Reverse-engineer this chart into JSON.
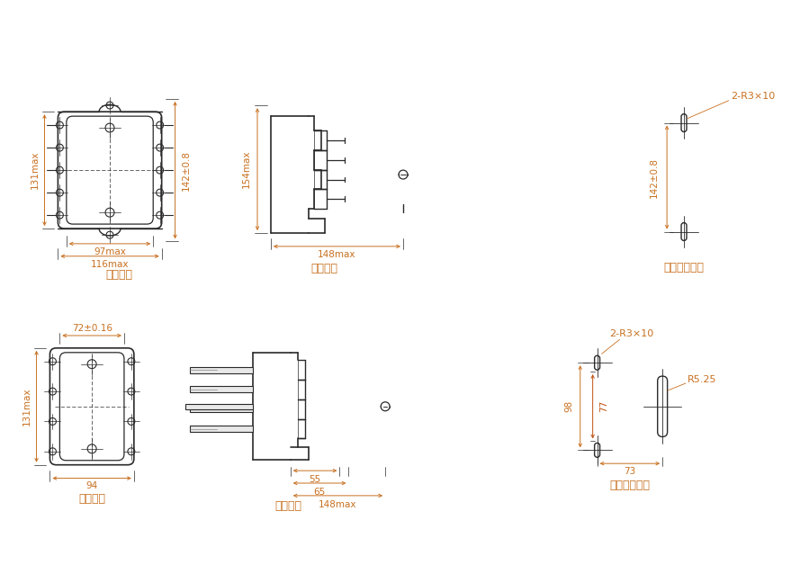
{
  "bg_color": "#ffffff",
  "line_color": "#2a2a2a",
  "dim_color": "#c87020",
  "labels": {
    "front_view": "板前接线",
    "back_view": "板后接线",
    "front_hole": "板前接线开孔",
    "back_hole": "板后接线开孔"
  },
  "dims": {
    "front_w": "116max",
    "front_w2": "97max",
    "front_h": "142±0.8",
    "front_h2": "131max",
    "side_h": "154max",
    "side_d": "148max",
    "back_w": "94",
    "back_w2": "72±0.16",
    "back_h": "131max",
    "back_side_d1": "55",
    "back_side_d2": "65",
    "back_side_d3": "148max",
    "hole_h": "142±0.8",
    "hole_r1": "2-R3×10",
    "hole_r2": "R5.25",
    "hole_w": "73",
    "hole_h2": "98",
    "hole_h3": "77"
  }
}
